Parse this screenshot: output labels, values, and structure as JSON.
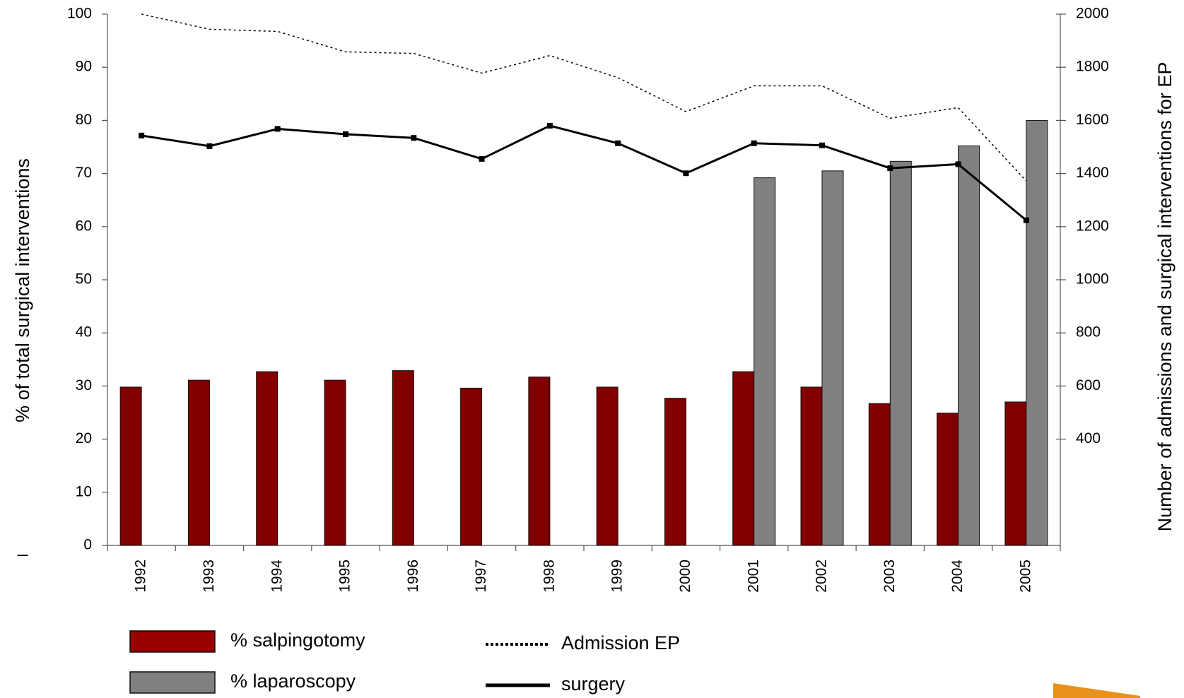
{
  "chart_data": {
    "type": "bar",
    "categories": [
      "1992",
      "1993",
      "1994",
      "1995",
      "1996",
      "1997",
      "1998",
      "1999",
      "2000",
      "2001",
      "2002",
      "2003",
      "2004",
      "2005"
    ],
    "series": [
      {
        "name": "% salpingotomy",
        "color": "#800000",
        "legend_color": "#990000",
        "type": "bar",
        "values": [
          29.8,
          31.1,
          32.7,
          31.1,
          32.9,
          29.6,
          31.7,
          29.8,
          27.7,
          32.7,
          29.8,
          26.7,
          24.9,
          27.0
        ]
      },
      {
        "name": "% laparoscopy",
        "color": "#808080",
        "type": "bar",
        "values": [
          null,
          null,
          null,
          null,
          null,
          null,
          null,
          null,
          null,
          69.2,
          70.5,
          72.3,
          75.2,
          80.0
        ]
      },
      {
        "name": "Admission EP",
        "color": "#000000",
        "type": "line",
        "dash": "dotted",
        "axis": "y2",
        "values": [
          2000,
          1943,
          1935,
          1858,
          1852,
          1778,
          1844,
          1761,
          1633,
          1730,
          1730,
          1608,
          1648,
          1372
        ]
      },
      {
        "name": "surgery",
        "color": "#000000",
        "type": "line",
        "dash": "solid",
        "markers": true,
        "axis": "y2",
        "values": [
          1543,
          1503,
          1568,
          1548,
          1534,
          1455,
          1580,
          1514,
          1401,
          1514,
          1506,
          1420,
          1435,
          1224
        ]
      }
    ],
    "ylabel": "% of total surgical interventions",
    "y2label": "Number of admissions and surgical interventions for EP",
    "annotation": "–",
    "ylim": [
      0,
      100
    ],
    "yticks": [
      0,
      10,
      20,
      30,
      40,
      50,
      60,
      70,
      80,
      90,
      100
    ],
    "y2lim": [
      0,
      2000
    ],
    "y2ticks": [
      400,
      600,
      800,
      1000,
      1200,
      1400,
      1600,
      1800,
      2000
    ]
  }
}
